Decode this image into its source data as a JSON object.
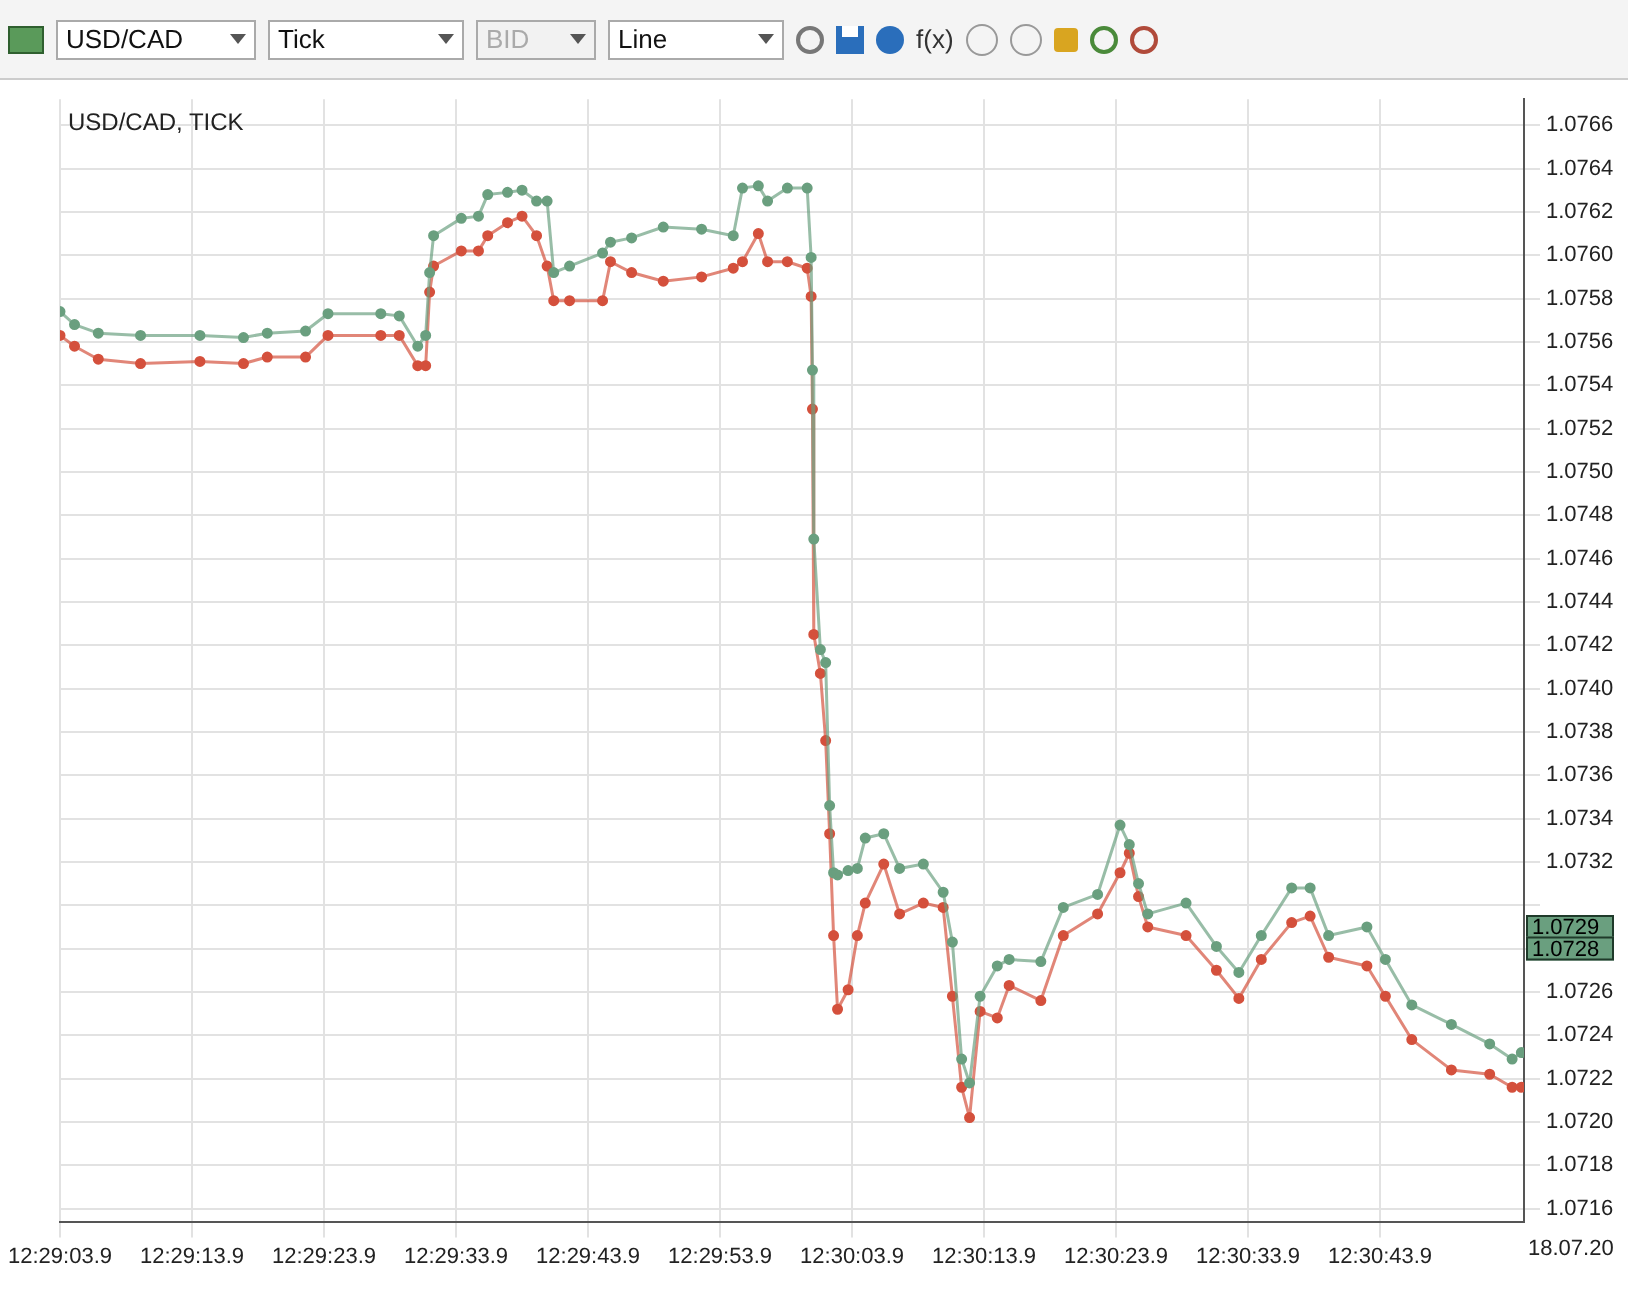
{
  "chart_data": {
    "type": "line",
    "title": "USD/CAD, TICK",
    "x": [
      "--07-18T12:29:03.9",
      "--07-18T12:29:05.0",
      "--07-18T12:29:06.8",
      "--07-18T12:29:10.0",
      "--07-18T12:29:14.5",
      "--07-18T12:29:17.8",
      "--07-18T12:29:19.6",
      "--07-18T12:29:22.5",
      "--07-18T12:29:24.2",
      "--07-18T12:29:28.2",
      "--07-18T12:29:29.6",
      "--07-18T12:29:31.0",
      "--07-18T12:29:31.6",
      "--07-18T12:29:31.9",
      "--07-18T12:29:32.2",
      "--07-18T12:29:34.3",
      "--07-18T12:29:35.6",
      "--07-18T12:29:36.3",
      "--07-18T12:29:37.8",
      "--07-18T12:29:38.9",
      "--07-18T12:29:40.0",
      "--07-18T12:29:40.8",
      "--07-18T12:29:41.3",
      "--07-18T12:29:42.5",
      "--07-18T12:29:45.0",
      "--07-18T12:29:45.6",
      "--07-18T12:29:47.2",
      "--07-18T12:29:49.6",
      "--07-18T12:29:52.5",
      "--07-18T12:29:54.9",
      "--07-18T12:29:55.6",
      "--07-18T12:29:56.8",
      "--07-18T12:29:57.5",
      "--07-18T12:29:59.0",
      "--07-18T12:30:00.5",
      "--07-18T12:30:00.8",
      "--07-18T12:30:00.9",
      "--07-18T12:30:01.0",
      "--07-18T12:30:01.5",
      "--07-18T12:30:01.9",
      "--07-18T12:30:02.2",
      "--07-18T12:30:02.5",
      "--07-18T12:30:02.8",
      "--07-18T12:30:03.6",
      "--07-18T12:30:04.3",
      "--07-18T12:30:04.9",
      "--07-18T12:30:06.3",
      "--07-18T12:30:07.5",
      "--07-18T12:30:09.3",
      "--07-18T12:30:10.8",
      "--07-18T12:30:11.5",
      "--07-18T12:30:12.2",
      "--07-18T12:30:12.8",
      "--07-18T12:30:13.6",
      "--07-18T12:30:14.9",
      "--07-18T12:30:15.8",
      "--07-18T12:30:18.2",
      "--07-18T12:30:19.9",
      "--07-18T12:30:22.5",
      "--07-18T12:30:24.2",
      "--07-18T12:30:24.9",
      "--07-18T12:30:25.6",
      "--07-18T12:30:26.3",
      "--07-18T12:30:29.2",
      "--07-18T12:30:31.5",
      "--07-18T12:30:33.2",
      "--07-18T12:30:34.9",
      "--07-18T12:30:37.2",
      "--07-18T12:30:38.6",
      "--07-18T12:30:40.0",
      "--07-18T12:30:42.9",
      "--07-18T12:30:44.3",
      "--07-18T12:30:46.3",
      "--07-18T12:30:49.3",
      "--07-18T12:30:52.2",
      "--07-18T12:30:53.9",
      "--07-18T12:30:54.6"
    ],
    "series": [
      {
        "color": "#6a9f7f",
        "values": [
          1.07574,
          1.07568,
          1.07564,
          1.07563,
          1.07563,
          1.07562,
          1.07564,
          1.07565,
          1.07573,
          1.07573,
          1.07572,
          1.07558,
          1.07563,
          1.07592,
          1.07609,
          1.07617,
          1.07618,
          1.07628,
          1.07629,
          1.0763,
          1.07625,
          1.07625,
          1.07592,
          1.07595,
          1.07601,
          1.07606,
          1.07608,
          1.07613,
          1.07612,
          1.07609,
          1.07631,
          1.07632,
          1.07625,
          1.07631,
          1.07631,
          1.07599,
          1.07547,
          1.07469,
          1.07418,
          1.07412,
          1.07346,
          1.07315,
          1.07314,
          1.07316,
          1.07317,
          1.07331,
          1.07333,
          1.07317,
          1.07319,
          1.07306,
          1.07283,
          1.07229,
          1.07218,
          1.07258,
          1.07272,
          1.07275,
          1.07274,
          1.07299,
          1.07305,
          1.07337,
          1.07328,
          1.0731,
          1.07296,
          1.07301,
          1.07281,
          1.07269,
          1.07286,
          1.07308,
          1.07308,
          1.07286,
          1.0729,
          1.07275,
          1.07254,
          1.07245,
          1.07236,
          1.07229,
          1.07232
        ]
      },
      {
        "color": "#d4503c",
        "values": [
          1.07563,
          1.07558,
          1.07552,
          1.0755,
          1.07551,
          1.0755,
          1.07553,
          1.07553,
          1.07563,
          1.07563,
          1.07563,
          1.07549,
          1.07549,
          1.07583,
          1.07595,
          1.07602,
          1.07602,
          1.07609,
          1.07615,
          1.07618,
          1.07609,
          1.07595,
          1.07579,
          1.07579,
          1.07579,
          1.07597,
          1.07592,
          1.07588,
          1.0759,
          1.07594,
          1.07597,
          1.0761,
          1.07597,
          1.07597,
          1.07594,
          1.07581,
          1.07529,
          1.07425,
          1.07407,
          1.07376,
          1.07333,
          1.07286,
          1.07252,
          1.07261,
          1.07286,
          1.07301,
          1.07319,
          1.07296,
          1.07301,
          1.07299,
          1.07258,
          1.07216,
          1.07202,
          1.07251,
          1.07248,
          1.07263,
          1.07256,
          1.07286,
          1.07296,
          1.07315,
          1.07324,
          1.07304,
          1.0729,
          1.07286,
          1.0727,
          1.07257,
          1.07275,
          1.07292,
          1.07295,
          1.07276,
          1.07272,
          1.07258,
          1.07238,
          1.07224,
          1.07222,
          1.07216,
          1.07216
        ]
      }
    ],
    "xlim": [
      "--07-18T12:29:03.9",
      "--07-18T12:30:54.8"
    ],
    "xticks": [
      {
        "value": "--07-18T12:29:03.9",
        "label": "12:29:03.9"
      },
      {
        "value": "--07-18T12:29:13.9",
        "label": "12:29:13.9"
      },
      {
        "value": "--07-18T12:29:23.9",
        "label": "12:29:23.9"
      },
      {
        "value": "--07-18T12:29:33.9",
        "label": "12:29:33.9"
      },
      {
        "value": "--07-18T12:29:43.9",
        "label": "12:29:43.9"
      },
      {
        "value": "--07-18T12:29:53.9",
        "label": "12:29:53.9"
      },
      {
        "value": "--07-18T12:30:03.9",
        "label": "12:30:03.9"
      },
      {
        "value": "--07-18T12:30:13.9",
        "label": "12:30:13.9"
      },
      {
        "value": "--07-18T12:30:23.9",
        "label": "12:30:23.9"
      },
      {
        "value": "--07-18T12:30:33.9",
        "label": "12:30:33.9"
      },
      {
        "value": "--07-18T12:30:43.9",
        "label": "12:30:43.9"
      }
    ],
    "ylim": [
      1.07154,
      1.07672
    ],
    "yticks": [
      {
        "value": 1.0716,
        "label": "1.0716"
      },
      {
        "value": 1.0718,
        "label": "1.0718"
      },
      {
        "value": 1.072,
        "label": "1.0720"
      },
      {
        "value": 1.0722,
        "label": "1.0722"
      },
      {
        "value": 1.0724,
        "label": "1.0724"
      },
      {
        "value": 1.0726,
        "label": "1.0726"
      },
      {
        "value": 1.0728,
        "label": null
      },
      {
        "value": 1.073,
        "label": null
      },
      {
        "value": 1.0732,
        "label": "1.0732"
      },
      {
        "value": 1.0734,
        "label": "1.0734"
      },
      {
        "value": 1.0736,
        "label": "1.0736"
      },
      {
        "value": 1.0738,
        "label": "1.0738"
      },
      {
        "value": 1.074,
        "label": "1.0740"
      },
      {
        "value": 1.0742,
        "label": "1.0742"
      },
      {
        "value": 1.0744,
        "label": "1.0744"
      },
      {
        "value": 1.0746,
        "label": "1.0746"
      },
      {
        "value": 1.0748,
        "label": "1.0748"
      },
      {
        "value": 1.075,
        "label": "1.0750"
      },
      {
        "value": 1.0752,
        "label": "1.0752"
      },
      {
        "value": 1.0754,
        "label": "1.0754"
      },
      {
        "value": 1.0756,
        "label": "1.0756"
      },
      {
        "value": 1.0758,
        "label": "1.0758"
      },
      {
        "value": 1.076,
        "label": "1.0760"
      },
      {
        "value": 1.0762,
        "label": "1.0762"
      },
      {
        "value": 1.0764,
        "label": "1.0764"
      },
      {
        "value": 1.0766,
        "label": "1.0766"
      }
    ],
    "grid": true,
    "marker": "circle",
    "line_style": "solid",
    "annotations": [
      "USD/CAD",
      "Tick",
      "BID",
      "Line",
      "f(x)",
      "18.07.20",
      "1.0729",
      "1.0728"
    ]
  }
}
